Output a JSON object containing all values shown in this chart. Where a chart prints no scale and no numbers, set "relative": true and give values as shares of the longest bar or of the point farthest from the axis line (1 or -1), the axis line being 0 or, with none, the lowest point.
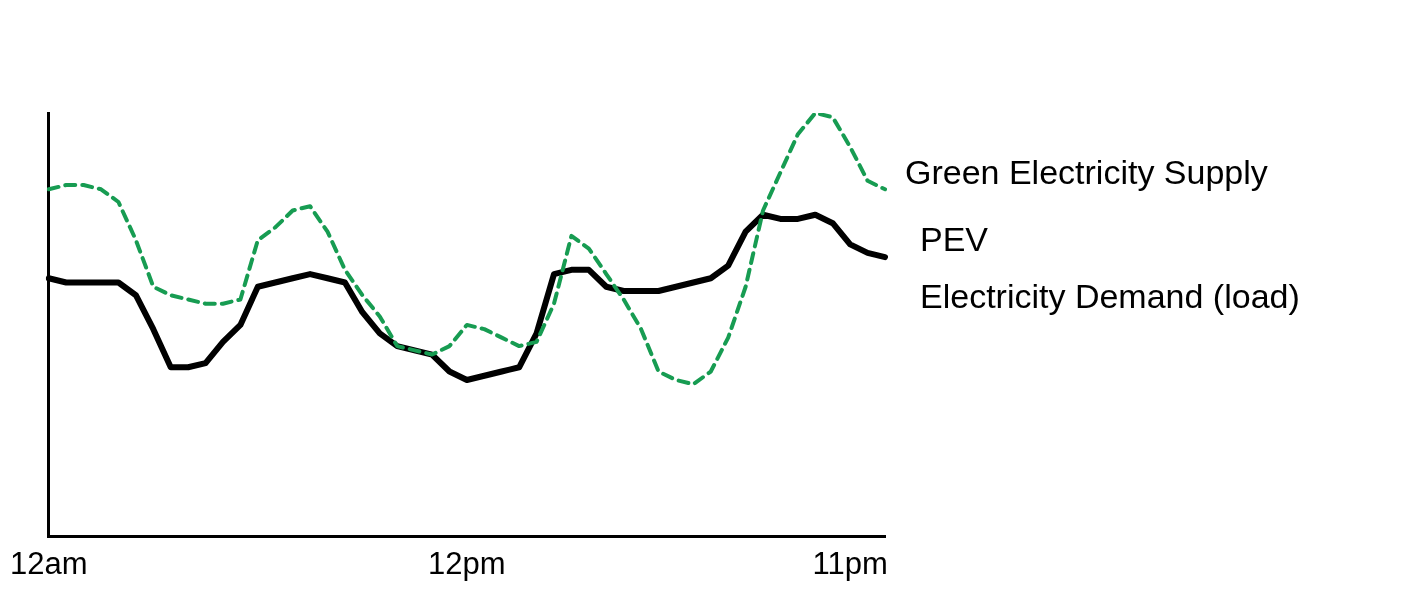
{
  "chart_data": {
    "type": "line",
    "relative": true,
    "legend": false,
    "grid": false,
    "marker": "none",
    "categories": [
      "12am",
      null,
      null,
      null,
      null,
      null,
      null,
      null,
      null,
      null,
      null,
      null,
      null,
      null,
      null,
      null,
      null,
      null,
      null,
      null,
      null,
      null,
      null,
      null,
      "12pm",
      null,
      null,
      null,
      null,
      null,
      null,
      null,
      null,
      null,
      null,
      null,
      null,
      null,
      null,
      null,
      null,
      null,
      null,
      null,
      null,
      null,
      "11pm",
      null,
      null
    ],
    "series": [
      {
        "name": "Green Electricity Supply",
        "color": "#179c52",
        "line_style": "dashed",
        "values": [
          0.82,
          0.83,
          0.83,
          0.82,
          0.79,
          0.7,
          0.59,
          0.57,
          0.56,
          0.55,
          0.55,
          0.56,
          0.7,
          0.73,
          0.77,
          0.78,
          0.72,
          0.63,
          0.57,
          0.52,
          0.45,
          0.44,
          0.43,
          0.45,
          0.5,
          0.49,
          0.47,
          0.45,
          0.46,
          0.55,
          0.71,
          0.68,
          0.62,
          0.56,
          0.49,
          0.39,
          0.37,
          0.36,
          0.39,
          0.47,
          0.59,
          0.77,
          0.86,
          0.95,
          1,
          0.99,
          0.92,
          0.84,
          0.82
        ]
      },
      {
        "name": "PEV\nElectricity Demand (load)",
        "color": "#000000",
        "line_style": "solid",
        "values": [
          0.61,
          0.6,
          0.6,
          0.6,
          0.6,
          0.57,
          0.49,
          0.4,
          0.4,
          0.41,
          0.46,
          0.5,
          0.59,
          0.6,
          0.61,
          0.62,
          0.61,
          0.6,
          0.53,
          0.48,
          0.45,
          0.44,
          0.43,
          0.39,
          0.37,
          0.38,
          0.39,
          0.4,
          0.48,
          0.62,
          0.63,
          0.63,
          0.59,
          0.58,
          0.58,
          0.58,
          0.59,
          0.6,
          0.61,
          0.64,
          0.72,
          0.76,
          0.75,
          0.75,
          0.76,
          0.74,
          0.69,
          0.67,
          0.66
        ]
      }
    ]
  }
}
